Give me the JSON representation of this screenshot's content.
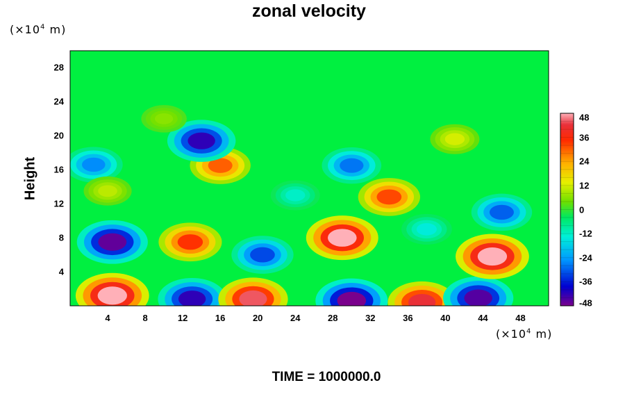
{
  "chart_data": {
    "type": "heatmap",
    "title": "zonal velocity",
    "ylabel": "Height",
    "y_unit": "(×10",
    "y_unit_exp": "4",
    "y_unit_tail": " m)",
    "x_unit": "(×10",
    "x_unit_exp": "4",
    "x_unit_tail": " m)",
    "xlim": [
      0,
      51
    ],
    "ylim": [
      0,
      30
    ],
    "x_ticks": [
      4,
      8,
      12,
      16,
      20,
      24,
      28,
      32,
      36,
      40,
      44,
      48
    ],
    "y_ticks": [
      4,
      8,
      12,
      16,
      20,
      24,
      28
    ],
    "colorbar": {
      "min": -48,
      "max": 48,
      "ticks": [
        48,
        36,
        24,
        12,
        0,
        -12,
        -24,
        -36,
        -48
      ]
    },
    "features": [
      {
        "x": 4.5,
        "y": 1.2,
        "value": 50
      },
      {
        "x": 13.0,
        "y": 0.8,
        "value": -42
      },
      {
        "x": 19.5,
        "y": 0.8,
        "value": 44
      },
      {
        "x": 30.0,
        "y": 0.6,
        "value": -48
      },
      {
        "x": 37.5,
        "y": 0.4,
        "value": 42
      },
      {
        "x": 43.5,
        "y": 0.9,
        "value": -45
      },
      {
        "x": 4.5,
        "y": 7.5,
        "value": -46
      },
      {
        "x": 12.8,
        "y": 7.5,
        "value": 34
      },
      {
        "x": 20.5,
        "y": 6.0,
        "value": -32
      },
      {
        "x": 29.0,
        "y": 8.0,
        "value": 48
      },
      {
        "x": 45.0,
        "y": 5.8,
        "value": 50
      },
      {
        "x": 34.0,
        "y": 12.8,
        "value": 32
      },
      {
        "x": 46.0,
        "y": 11.0,
        "value": -30
      },
      {
        "x": 16.0,
        "y": 16.5,
        "value": 30
      },
      {
        "x": 30.0,
        "y": 16.5,
        "value": -28
      },
      {
        "x": 2.5,
        "y": 16.6,
        "value": -26
      },
      {
        "x": 14.0,
        "y": 19.4,
        "value": -42
      },
      {
        "x": 41.0,
        "y": 19.6,
        "value": 12
      },
      {
        "x": 4.0,
        "y": 13.5,
        "value": 10
      },
      {
        "x": 24.0,
        "y": 13.0,
        "value": -12
      },
      {
        "x": 38.0,
        "y": 9.0,
        "value": -14
      },
      {
        "x": 10.0,
        "y": 22.0,
        "value": 6
      }
    ]
  },
  "footer": {
    "time_label": "TIME = 1000000.0"
  }
}
